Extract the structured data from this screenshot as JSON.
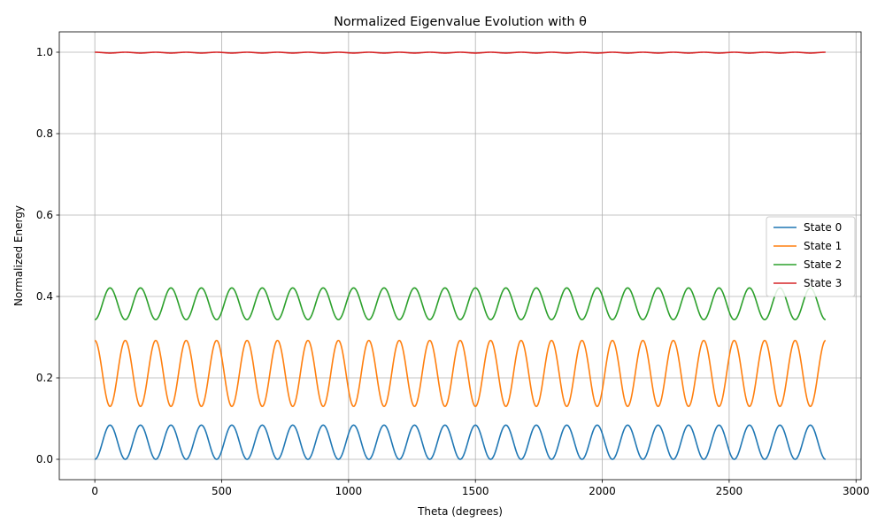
{
  "chart_data": {
    "type": "line",
    "title": "Normalized Eigenvalue Evolution with θ",
    "xlabel": "Theta (degrees)",
    "ylabel": "Normalized Energy",
    "xlim": [
      -140,
      3020
    ],
    "ylim": [
      -0.05,
      1.05
    ],
    "xticks": [
      0,
      500,
      1000,
      1500,
      2000,
      2500,
      3000
    ],
    "xtick_labels": [
      "0",
      "500",
      "1000",
      "1500",
      "2000",
      "2500",
      "3000"
    ],
    "yticks": [
      0.0,
      0.2,
      0.4,
      0.6,
      0.8,
      1.0
    ],
    "ytick_labels": [
      "0.0",
      "0.2",
      "0.4",
      "0.6",
      "0.8",
      "1.0"
    ],
    "grid": true,
    "legend_position": "center-right",
    "x_range": [
      0,
      2880
    ],
    "period": 120,
    "series": [
      {
        "name": "State 0",
        "color": "#1f77b4",
        "min": 0.0,
        "max": 0.084,
        "value_at_0": 0.0,
        "peak_at": 60
      },
      {
        "name": "State 1",
        "color": "#ff7f0e",
        "min": 0.13,
        "max": 0.292,
        "value_at_0": 0.292,
        "trough_at": 60
      },
      {
        "name": "State 2",
        "color": "#2ca02c",
        "min": 0.343,
        "max": 0.421,
        "value_at_0": 0.343,
        "peak_at": 60
      },
      {
        "name": "State 3",
        "color": "#d62728",
        "min": 0.998,
        "max": 1.0,
        "value_at_0": 1.0,
        "trough_at": 60
      }
    ]
  }
}
